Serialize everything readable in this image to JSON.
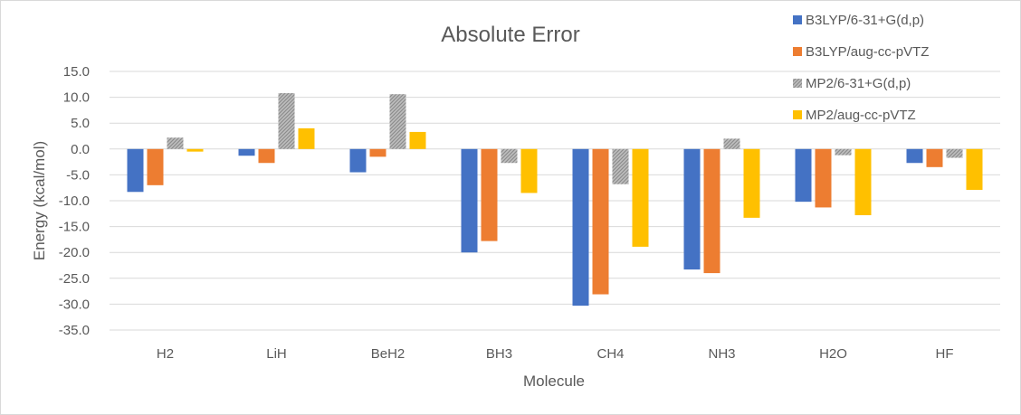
{
  "chart_data": {
    "type": "bar",
    "title": "Absolute Error",
    "xlabel": "Molecule",
    "ylabel": "Energy (kcal/mol)",
    "ylim": [
      -35,
      15
    ],
    "ytick_step": 5,
    "ytick_labels": [
      "15.0",
      "10.0",
      "5.0",
      "0.0",
      "-5.0",
      "-10.0",
      "-15.0",
      "-20.0",
      "-25.0",
      "-30.0",
      "-35.0"
    ],
    "grid": true,
    "legend_position": "top-right",
    "categories": [
      "H2",
      "LiH",
      "BeH2",
      "BH3",
      "CH4",
      "NH3",
      "H2O",
      "HF"
    ],
    "series": [
      {
        "name": "B3LYP/6-31+G(d,p)",
        "color": "#4472c4",
        "pattern": "solid",
        "values": [
          -8.3,
          -1.3,
          -4.5,
          -20.0,
          -30.3,
          -23.3,
          -10.2,
          -2.7
        ]
      },
      {
        "name": "B3LYP/aug-cc-pVTZ",
        "color": "#ed7d31",
        "pattern": "solid",
        "values": [
          -7.0,
          -2.7,
          -1.5,
          -17.8,
          -28.1,
          -24.0,
          -11.3,
          -3.5
        ]
      },
      {
        "name": "MP2/6-31+G(d,p)",
        "color": "#a5a5a5",
        "pattern": "hatched",
        "values": [
          2.2,
          10.8,
          10.6,
          -2.7,
          -6.8,
          2.0,
          -1.2,
          -1.7
        ]
      },
      {
        "name": "MP2/aug-cc-pVTZ",
        "color": "#ffc000",
        "pattern": "solid",
        "values": [
          -0.5,
          4.0,
          3.3,
          -8.5,
          -18.9,
          -13.3,
          -12.8,
          -7.9
        ]
      }
    ]
  }
}
